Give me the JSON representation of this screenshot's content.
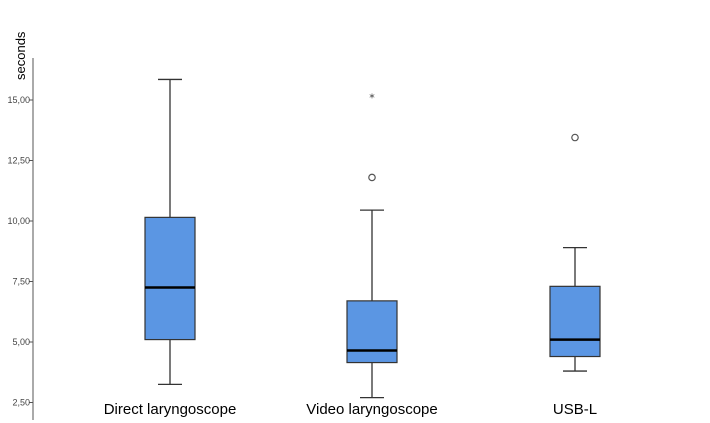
{
  "chart_data": {
    "type": "boxplot",
    "title": "",
    "xlabel": "",
    "ylabel": "seconds",
    "ylim": [
      2.5,
      16.5
    ],
    "yticks": [
      2.5,
      5.0,
      7.5,
      10.0,
      12.5,
      15.0
    ],
    "ytick_labels": [
      "2,50",
      "5,00",
      "7,50",
      "10,00",
      "12,50",
      "15,00"
    ],
    "grid": false,
    "box_color": "#5B96E3",
    "box_stroke": "#333333",
    "median_color": "#000000",
    "categories": [
      "Direct laryngoscope",
      "Video laryngoscope",
      "USB-L"
    ],
    "boxes": [
      {
        "min": 3.25,
        "q1": 5.1,
        "median": 7.25,
        "q3": 10.15,
        "max": 15.85,
        "outliers": []
      },
      {
        "min": 2.7,
        "q1": 4.15,
        "median": 4.65,
        "q3": 6.7,
        "max": 10.45,
        "outliers": [
          {
            "value": 11.8,
            "marker": "circle"
          },
          {
            "value": 15.1,
            "marker": "star"
          }
        ]
      },
      {
        "min": 3.8,
        "q1": 4.4,
        "median": 5.1,
        "q3": 7.3,
        "max": 8.9,
        "outliers": [
          {
            "value": 13.45,
            "marker": "circle"
          }
        ]
      }
    ]
  }
}
